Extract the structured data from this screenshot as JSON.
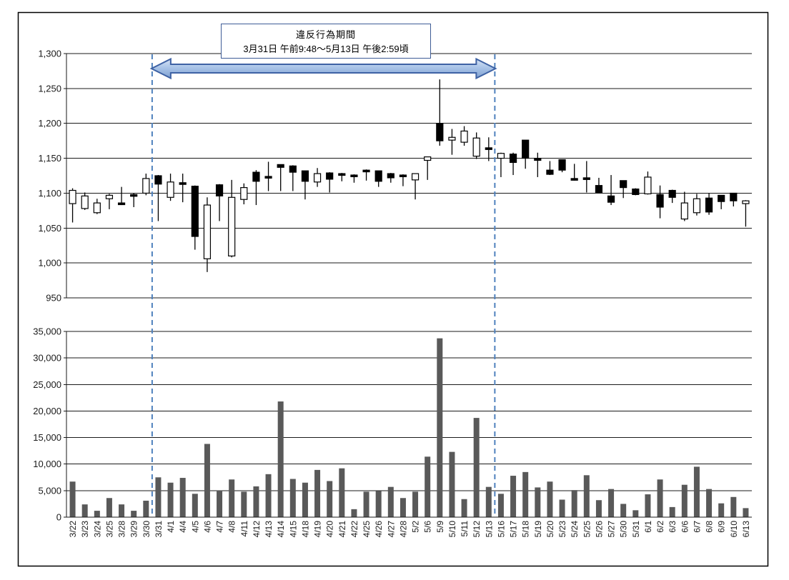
{
  "annotation": {
    "line1": "違反行為期間",
    "line2": "3月31日 午前9:48～5月13日 午後2:59頃"
  },
  "violation_period": {
    "start_date": "3/31",
    "end_date": "5/13",
    "start_index": 7,
    "end_index": 34
  },
  "price_axis_ticks": [
    "1,300",
    "1,250",
    "1,200",
    "1,150",
    "1,100",
    "1,050",
    "1,000",
    "950"
  ],
  "volume_axis_ticks": [
    "35,000",
    "30,000",
    "25,000",
    "20,000",
    "15,000",
    "10,000",
    "5,000",
    "0"
  ],
  "colors": {
    "accent_blue": "#4F81BD",
    "dashed_line": "#4F81BD",
    "arrow_border": "#3E62A4",
    "arrow_fill_top": "#D9E4F4",
    "arrow_fill_mid": "#A9C4E8",
    "arrow_fill_bottom": "#7E9FD0",
    "annotation_border": "#3E5C96",
    "volume_bar": "#595959",
    "candle_up_fill": "#FFFFFF",
    "candle_down_fill": "#000000",
    "grid": "#1a1a1a",
    "text": "#1a1a1a"
  },
  "chart_data": [
    {
      "type": "candlestick",
      "x": [
        "3/22",
        "3/23",
        "3/24",
        "3/25",
        "3/28",
        "3/29",
        "3/30",
        "3/31",
        "4/1",
        "4/4",
        "4/5",
        "4/6",
        "4/7",
        "4/8",
        "4/11",
        "4/12",
        "4/13",
        "4/14",
        "4/15",
        "4/18",
        "4/19",
        "4/20",
        "4/21",
        "4/22",
        "4/25",
        "4/26",
        "4/27",
        "4/28",
        "5/2",
        "5/6",
        "5/9",
        "5/10",
        "5/11",
        "5/12",
        "5/13",
        "5/16",
        "5/17",
        "5/18",
        "5/19",
        "5/20",
        "5/23",
        "5/24",
        "5/25",
        "5/26",
        "5/27",
        "5/30",
        "5/31",
        "6/1",
        "6/2",
        "6/3",
        "6/6",
        "6/7",
        "6/8",
        "6/9",
        "6/10",
        "6/13"
      ],
      "series": [
        {
          "name": "ohlc",
          "values": [
            [
              1085,
              1107,
              1058,
              1104
            ],
            [
              1078,
              1101,
              1076,
              1096
            ],
            [
              1072,
              1092,
              1070,
              1086
            ],
            [
              1092,
              1099,
              1077,
              1097
            ],
            [
              1086,
              1109,
              1083,
              1085
            ],
            [
              1098,
              1100,
              1080,
              1096
            ],
            [
              1100,
              1128,
              1097,
              1121
            ],
            [
              1125,
              1126,
              1060,
              1113
            ],
            [
              1094,
              1128,
              1089,
              1116
            ],
            [
              1115,
              1128,
              1087,
              1114
            ],
            [
              1110,
              1111,
              1019,
              1038
            ],
            [
              1006,
              1094,
              987,
              1083
            ],
            [
              1112,
              1113,
              1060,
              1096
            ],
            [
              1010,
              1119,
              1008,
              1094
            ],
            [
              1091,
              1114,
              1084,
              1108
            ],
            [
              1130,
              1133,
              1083,
              1117
            ],
            [
              1124,
              1145,
              1103,
              1122
            ],
            [
              1141,
              1141,
              1103,
              1137
            ],
            [
              1139,
              1140,
              1103,
              1130
            ],
            [
              1132,
              1132,
              1091,
              1117
            ],
            [
              1116,
              1136,
              1109,
              1128
            ],
            [
              1129,
              1130,
              1101,
              1120
            ],
            [
              1128,
              1129,
              1117,
              1127
            ],
            [
              1126,
              1127,
              1115,
              1125
            ],
            [
              1133,
              1134,
              1118,
              1131
            ],
            [
              1132,
              1132,
              1109,
              1117
            ],
            [
              1128,
              1129,
              1115,
              1122
            ],
            [
              1126,
              1127,
              1110,
              1124
            ],
            [
              1119,
              1128,
              1091,
              1128
            ],
            [
              1147,
              1152,
              1119,
              1152
            ],
            [
              1200,
              1263,
              1168,
              1175
            ],
            [
              1176,
              1192,
              1155,
              1180
            ],
            [
              1173,
              1196,
              1168,
              1189
            ],
            [
              1153,
              1187,
              1149,
              1179
            ],
            [
              1165,
              1180,
              1146,
              1164
            ],
            [
              1150,
              1158,
              1123,
              1157
            ],
            [
              1156,
              1158,
              1126,
              1144
            ],
            [
              1176,
              1176,
              1135,
              1150
            ],
            [
              1150,
              1158,
              1123,
              1147
            ],
            [
              1133,
              1146,
              1126,
              1127
            ],
            [
              1148,
              1148,
              1130,
              1133
            ],
            [
              1121,
              1142,
              1118,
              1119
            ],
            [
              1122,
              1146,
              1101,
              1120
            ],
            [
              1111,
              1122,
              1101,
              1101
            ],
            [
              1096,
              1126,
              1083,
              1087
            ],
            [
              1118,
              1118,
              1093,
              1108
            ],
            [
              1106,
              1107,
              1097,
              1098
            ],
            [
              1099,
              1131,
              1098,
              1123
            ],
            [
              1098,
              1111,
              1064,
              1080
            ],
            [
              1104,
              1105,
              1086,
              1094
            ],
            [
              1063,
              1102,
              1060,
              1086
            ],
            [
              1072,
              1099,
              1068,
              1092
            ],
            [
              1093,
              1100,
              1069,
              1073
            ],
            [
              1097,
              1097,
              1077,
              1088
            ],
            [
              1100,
              1100,
              1081,
              1089
            ],
            [
              1085,
              1090,
              1052,
              1089
            ]
          ]
        }
      ],
      "ylim": [
        950,
        1300
      ],
      "y_step": 50,
      "grid": true
    },
    {
      "type": "bar",
      "categories": [
        "3/22",
        "3/23",
        "3/24",
        "3/25",
        "3/28",
        "3/29",
        "3/30",
        "3/31",
        "4/1",
        "4/4",
        "4/5",
        "4/6",
        "4/7",
        "4/8",
        "4/11",
        "4/12",
        "4/13",
        "4/14",
        "4/15",
        "4/18",
        "4/19",
        "4/20",
        "4/21",
        "4/22",
        "4/25",
        "4/26",
        "4/27",
        "4/28",
        "5/2",
        "5/6",
        "5/9",
        "5/10",
        "5/11",
        "5/12",
        "5/13",
        "5/16",
        "5/17",
        "5/18",
        "5/19",
        "5/20",
        "5/23",
        "5/24",
        "5/25",
        "5/26",
        "5/27",
        "5/30",
        "5/31",
        "6/1",
        "6/2",
        "6/3",
        "6/6",
        "6/7",
        "6/8",
        "6/9",
        "6/10",
        "6/13"
      ],
      "values": [
        6700,
        2400,
        1200,
        3600,
        2400,
        1200,
        3100,
        7500,
        6500,
        7400,
        4400,
        13800,
        5000,
        7100,
        4800,
        5800,
        8100,
        21800,
        7200,
        6500,
        8900,
        6800,
        9200,
        1500,
        4800,
        4900,
        5700,
        3600,
        4800,
        11400,
        33700,
        12300,
        3400,
        18700,
        5700,
        4400,
        7800,
        8500,
        5600,
        6700,
        3300,
        5100,
        7900,
        3200,
        5300,
        2500,
        1300,
        4300,
        7100,
        1900,
        6100,
        9500,
        5300,
        2600,
        3800,
        1700
      ],
      "ylim": [
        0,
        35000
      ],
      "y_step": 5000,
      "grid": true
    }
  ]
}
